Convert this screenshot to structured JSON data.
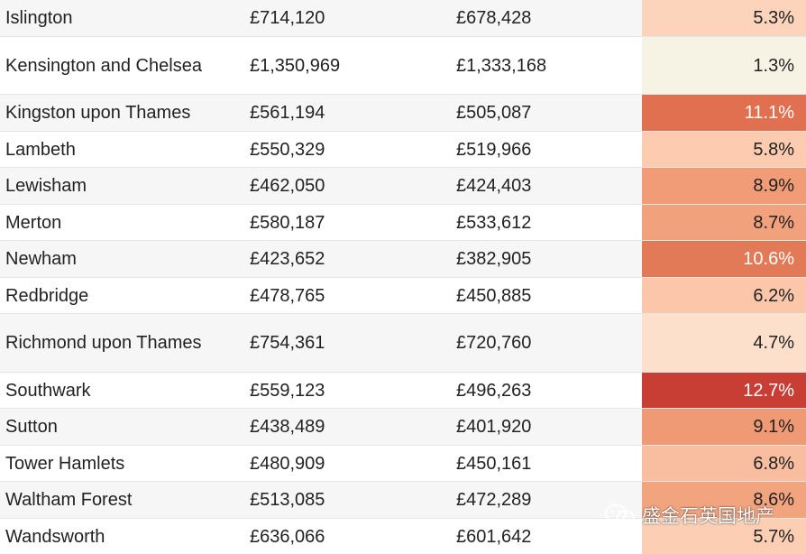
{
  "rows": [
    {
      "name": "Islington",
      "price_now": "£714,120",
      "price_prev": "£678,428",
      "change": "5.3%",
      "change_value": 5.3,
      "color": "#fcd3bb",
      "dark": false
    },
    {
      "name": "Kensington and Chelsea",
      "price_now": "£1,350,969",
      "price_prev": "£1,333,168",
      "change": "1.3%",
      "change_value": 1.3,
      "color": "#f7f3e4",
      "dark": false
    },
    {
      "name": "Kingston upon Thames",
      "price_now": "£561,194",
      "price_prev": "£505,087",
      "change": "11.1%",
      "change_value": 11.1,
      "color": "#e0704f",
      "dark": true
    },
    {
      "name": "Lambeth",
      "price_now": "£550,329",
      "price_prev": "£519,966",
      "change": "5.8%",
      "change_value": 5.8,
      "color": "#fccbb0",
      "dark": false
    },
    {
      "name": "Lewisham",
      "price_now": "£462,050",
      "price_prev": "£424,403",
      "change": "8.9%",
      "change_value": 8.9,
      "color": "#f19c77",
      "dark": false
    },
    {
      "name": "Merton",
      "price_now": "£580,187",
      "price_prev": "£533,612",
      "change": "8.7%",
      "change_value": 8.7,
      "color": "#f2a17d",
      "dark": false
    },
    {
      "name": "Newham",
      "price_now": "£423,652",
      "price_prev": "£382,905",
      "change": "10.6%",
      "change_value": 10.6,
      "color": "#e37a57",
      "dark": true
    },
    {
      "name": "Redbridge",
      "price_now": "£478,765",
      "price_prev": "£450,885",
      "change": "6.2%",
      "change_value": 6.2,
      "color": "#fbc6aa",
      "dark": false
    },
    {
      "name": "Richmond upon Thames",
      "price_now": "£754,361",
      "price_prev": "£720,760",
      "change": "4.7%",
      "change_value": 4.7,
      "color": "#fde0cc",
      "dark": false
    },
    {
      "name": "Southwark",
      "price_now": "£559,123",
      "price_prev": "£496,263",
      "change": "12.7%",
      "change_value": 12.7,
      "color": "#c83e35",
      "dark": true
    },
    {
      "name": "Sutton",
      "price_now": "£438,489",
      "price_prev": "£401,920",
      "change": "9.1%",
      "change_value": 9.1,
      "color": "#f09a75",
      "dark": false
    },
    {
      "name": "Tower Hamlets",
      "price_now": "£480,909",
      "price_prev": "£450,161",
      "change": "6.8%",
      "change_value": 6.8,
      "color": "#f9bea0",
      "dark": false
    },
    {
      "name": "Waltham Forest",
      "price_now": "£513,085",
      "price_prev": "£472,289",
      "change": "8.6%",
      "change_value": 8.6,
      "color": "#f2a47f",
      "dark": false
    },
    {
      "name": "Wandsworth",
      "price_now": "£636,066",
      "price_prev": "£601,642",
      "change": "5.7%",
      "change_value": 5.7,
      "color": "#fcceb3",
      "dark": false
    }
  ],
  "watermark": {
    "text": "盛金石英国地产",
    "icon": "wechat-icon"
  }
}
